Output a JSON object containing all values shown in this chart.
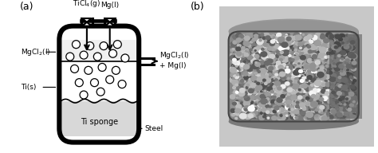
{
  "fig_width": 4.74,
  "fig_height": 1.92,
  "dpi": 100,
  "bg_color": "#ffffff",
  "panel_a_label": "(a)",
  "panel_b_label": "(b)",
  "label_TiCl4": "TiCl$_4$(g)",
  "label_Mg": "Mg(l)",
  "label_MgCl2_left": "MgCl$_2$(l)",
  "label_Ti_s": "Ti(s)",
  "label_MgCl2_right": "MgCl$_2$(l)\n+ Mg(l)",
  "label_Ti_sponge": "Ti sponge",
  "label_Steel": "Steel",
  "line_color": "#000000",
  "fill_liquid_color": "#f0f0f0",
  "fill_sponge_color": "#d8d8d8",
  "bubble_color": "#ffffff",
  "font_size": 6.5,
  "label_font_size": 9
}
